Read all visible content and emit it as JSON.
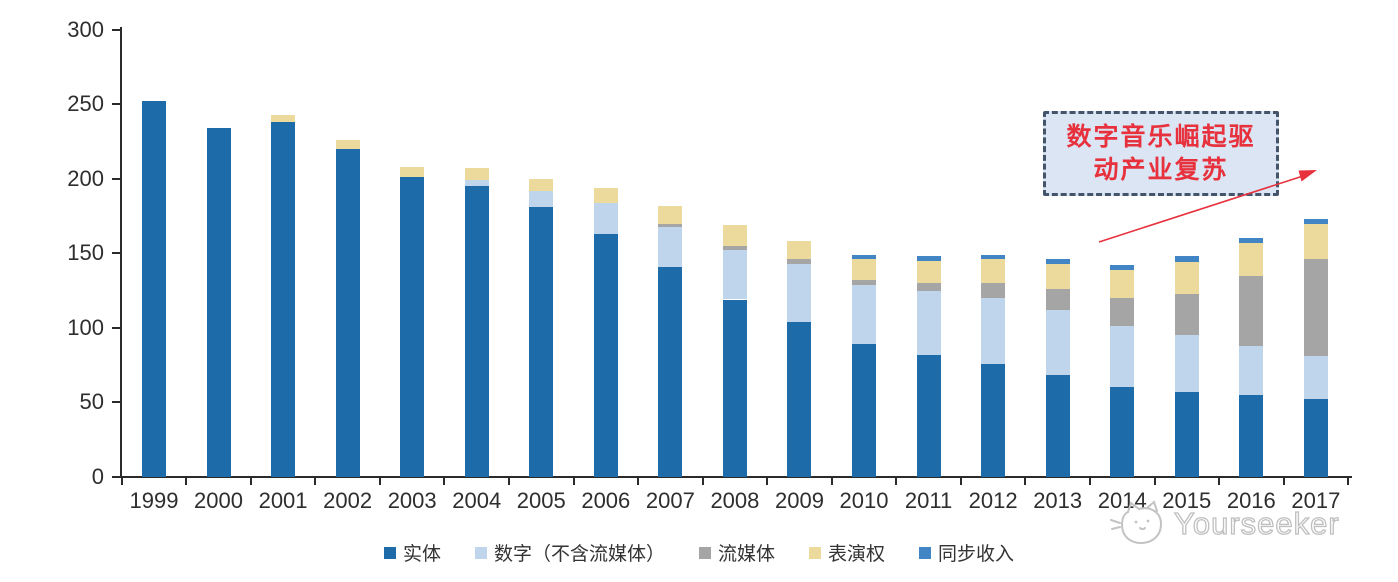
{
  "chart_data": {
    "type": "bar",
    "stacked": true,
    "title": "",
    "xlabel": "",
    "ylabel": "",
    "categories": [
      "1999",
      "2000",
      "2001",
      "2002",
      "2003",
      "2004",
      "2005",
      "2006",
      "2007",
      "2008",
      "2009",
      "2010",
      "2011",
      "2012",
      "2013",
      "2014",
      "2015",
      "2016",
      "2017"
    ],
    "series": [
      {
        "name": "实体",
        "color": "#1e6ba9",
        "values": [
          252,
          234,
          238,
          220,
          201,
          195,
          181,
          163,
          141,
          119,
          104,
          89,
          82,
          76,
          68,
          60,
          57,
          55,
          52
        ]
      },
      {
        "name": "数字（不含流媒体）",
        "color": "#bed5eb",
        "values": [
          0,
          0,
          0,
          0,
          0,
          4,
          11,
          21,
          27,
          33,
          39,
          40,
          43,
          44,
          44,
          41,
          38,
          33,
          29
        ]
      },
      {
        "name": "流媒体",
        "color": "#a5a5a5",
        "values": [
          0,
          0,
          0,
          0,
          0,
          0,
          0,
          0,
          2,
          3,
          3,
          3,
          5,
          10,
          14,
          19,
          28,
          47,
          65
        ]
      },
      {
        "name": "表演权",
        "color": "#ecd99c",
        "values": [
          0,
          0,
          5,
          6,
          7,
          8,
          8,
          10,
          12,
          14,
          12,
          14,
          15,
          16,
          17,
          19,
          21,
          22,
          24
        ]
      },
      {
        "name": "同步收入",
        "color": "#4285c4",
        "values": [
          0,
          0,
          0,
          0,
          0,
          0,
          0,
          0,
          0,
          0,
          0,
          3,
          3,
          3,
          3,
          3,
          4,
          3,
          3
        ]
      }
    ],
    "totals": [
      252,
      234,
      243,
      226,
      208,
      207,
      200,
      194,
      182,
      169,
      158,
      149,
      148,
      149,
      146,
      142,
      148,
      160,
      173
    ],
    "ylim": [
      0,
      300
    ],
    "yticks": [
      0,
      50,
      100,
      150,
      200,
      250,
      300
    ],
    "grid": false,
    "legend_position": "bottom"
  },
  "annotation": {
    "line1": "数字音乐崛起驱",
    "line2": "动产业复苏",
    "border_color": "#44546a",
    "fill_color": "#dbe5f3",
    "text_color": "#e7323e",
    "arrow_color": "#e7323e"
  },
  "watermark": {
    "text": "Yourseeker",
    "logo": "cat-face-icon",
    "color": "#c3c3c3"
  }
}
